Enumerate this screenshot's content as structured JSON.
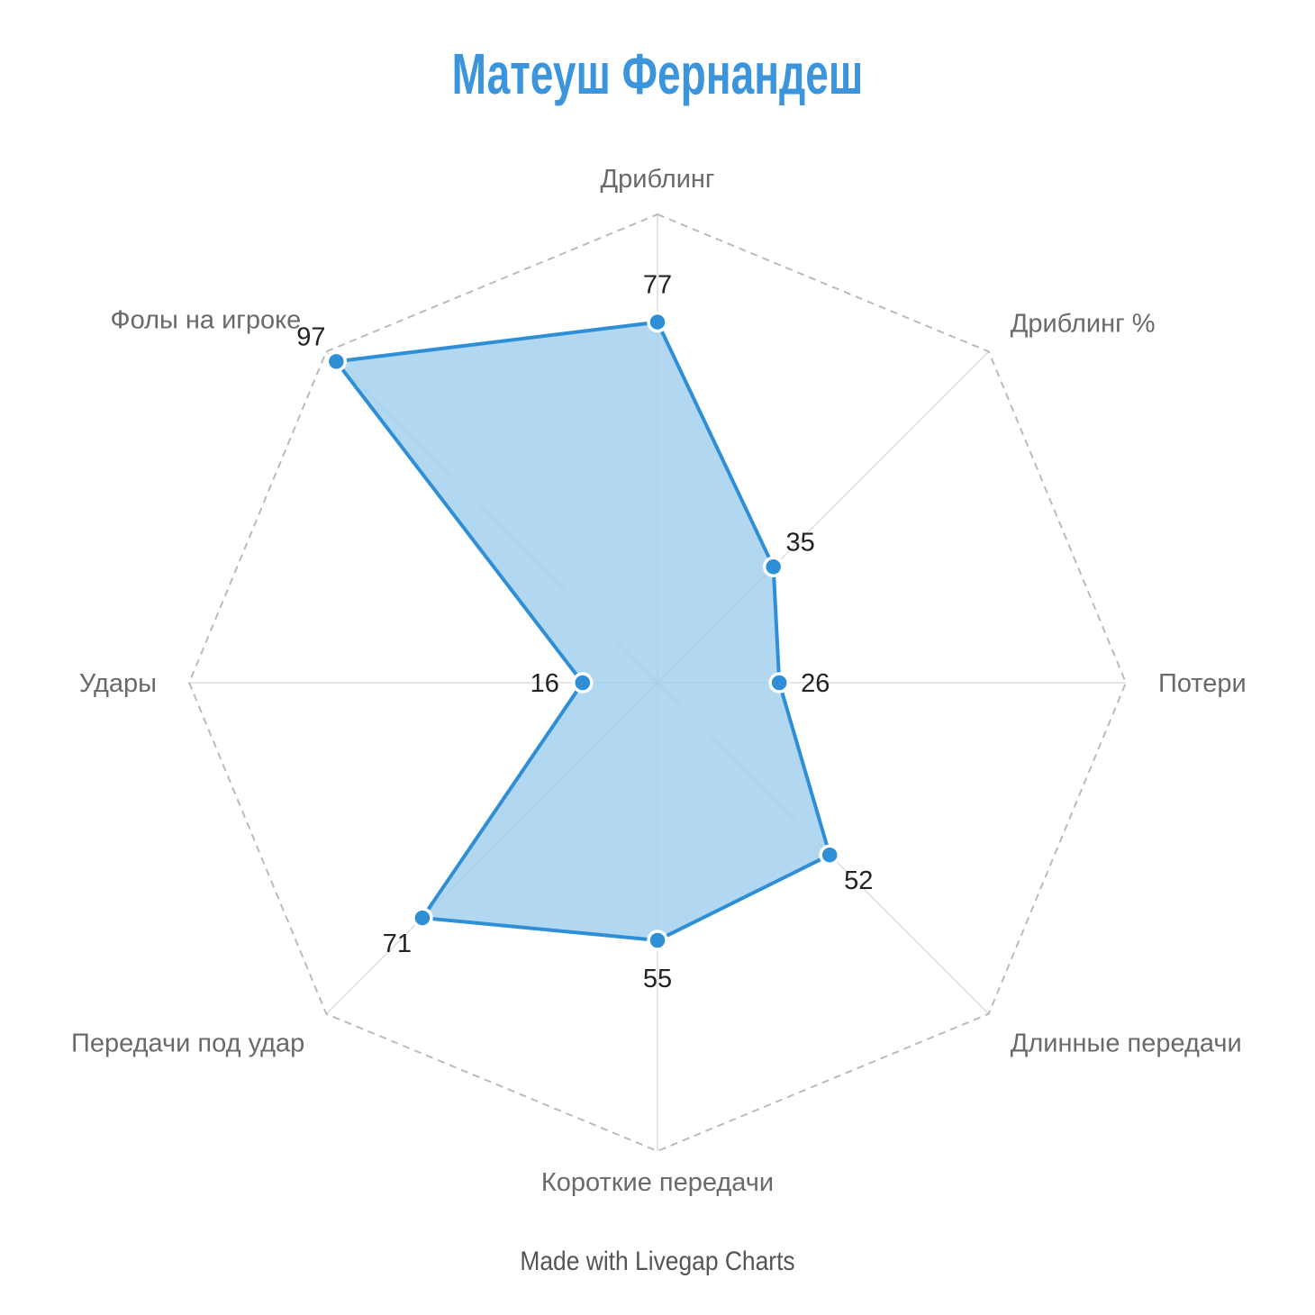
{
  "title": "Матеуш Фернандеш",
  "credit": "Made with Livegap Charts",
  "colors": {
    "title": "#3b95dc",
    "series_line": "#2f8fd6",
    "series_fill": "#9ecdee",
    "grid_outer": "#bbbbbb",
    "spokes": "#dddddd"
  },
  "chart_data": {
    "type": "radar",
    "title": "Матеуш Фернандеш",
    "categories": [
      "Дриблинг",
      "Дриблинг %",
      "Потери",
      "Длинные передачи",
      "Короткие передачи",
      "Передачи под удар",
      "Удары",
      "Фолы на игроке"
    ],
    "series": [
      {
        "values": [
          77,
          35,
          26,
          52,
          55,
          71,
          16,
          97
        ]
      }
    ],
    "value_labels": [
      "77",
      "35",
      "26",
      "52",
      "55",
      "71",
      "16",
      "97"
    ],
    "rlim": [
      0,
      100
    ],
    "grid": "outer-ring-dashed",
    "legend": "none"
  }
}
